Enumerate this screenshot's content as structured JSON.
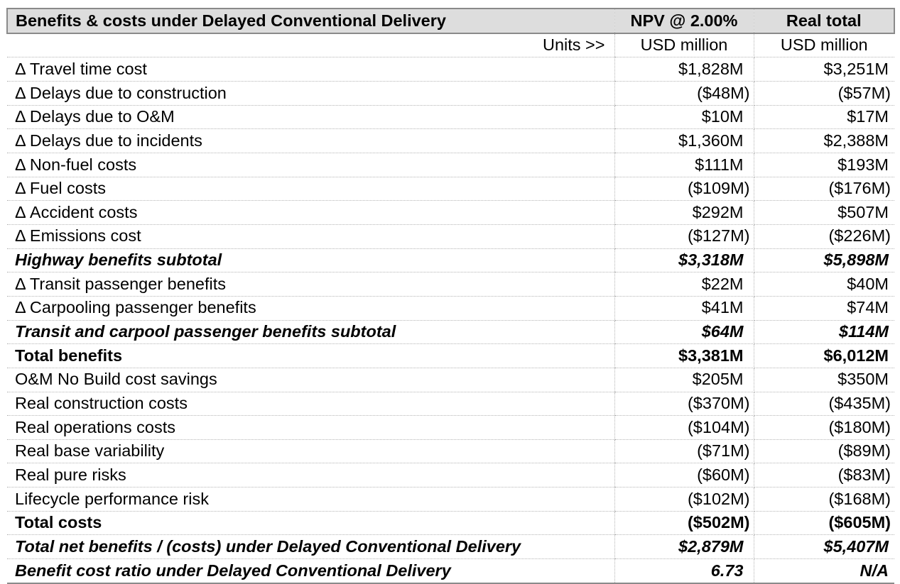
{
  "header": {
    "title": "Benefits & costs under Delayed Conventional Delivery",
    "col2": "NPV @ 2.00%",
    "col3": "Real total"
  },
  "units": {
    "label": "Units >>",
    "col2": "USD million",
    "col3": "USD million"
  },
  "rows": [
    {
      "label": "Δ Travel time cost",
      "npv": "$1,828M",
      "real": "$3,251M"
    },
    {
      "label": "Δ Delays due to construction",
      "npv": "($48M)",
      "real": "($57M)"
    },
    {
      "label": "Δ Delays due to O&M",
      "npv": "$10M",
      "real": "$17M"
    },
    {
      "label": "Δ Delays due to incidents",
      "npv": "$1,360M",
      "real": "$2,388M"
    },
    {
      "label": "Δ Non-fuel costs",
      "npv": "$111M",
      "real": "$193M"
    },
    {
      "label": "Δ Fuel costs",
      "npv": "($109M)",
      "real": "($176M)"
    },
    {
      "label": "Δ Accident costs",
      "npv": "$292M",
      "real": "$507M"
    },
    {
      "label": "Δ Emissions cost",
      "npv": "($127M)",
      "real": "($226M)"
    },
    {
      "label": "Highway benefits subtotal",
      "npv": "$3,318M",
      "real": "$5,898M"
    },
    {
      "label": "Δ Transit passenger benefits",
      "npv": "$22M",
      "real": "$40M"
    },
    {
      "label": "Δ Carpooling passenger benefits",
      "npv": "$41M",
      "real": "$74M"
    },
    {
      "label": "Transit and carpool passenger benefits subtotal",
      "npv": "$64M",
      "real": "$114M"
    },
    {
      "label": "Total benefits",
      "npv": "$3,381M",
      "real": "$6,012M"
    },
    {
      "label": "O&M No Build cost savings",
      "npv": "$205M",
      "real": "$350M"
    },
    {
      "label": "Real construction costs",
      "npv": "($370M)",
      "real": "($435M)"
    },
    {
      "label": "Real operations costs",
      "npv": "($104M)",
      "real": "($180M)"
    },
    {
      "label": "Real base variability",
      "npv": "($71M)",
      "real": "($89M)"
    },
    {
      "label": "Real pure risks",
      "npv": "($60M)",
      "real": "($83M)"
    },
    {
      "label": "Lifecycle performance risk",
      "npv": "($102M)",
      "real": "($168M)"
    },
    {
      "label": "Total costs",
      "npv": "($502M)",
      "real": "($605M)"
    },
    {
      "label": "Total net benefits / (costs) under Delayed Conventional Delivery",
      "npv": "$2,879M",
      "real": "$5,407M"
    },
    {
      "label": "Benefit cost ratio under Delayed Conventional Delivery",
      "npv": "6.73",
      "real": "N/A"
    }
  ]
}
